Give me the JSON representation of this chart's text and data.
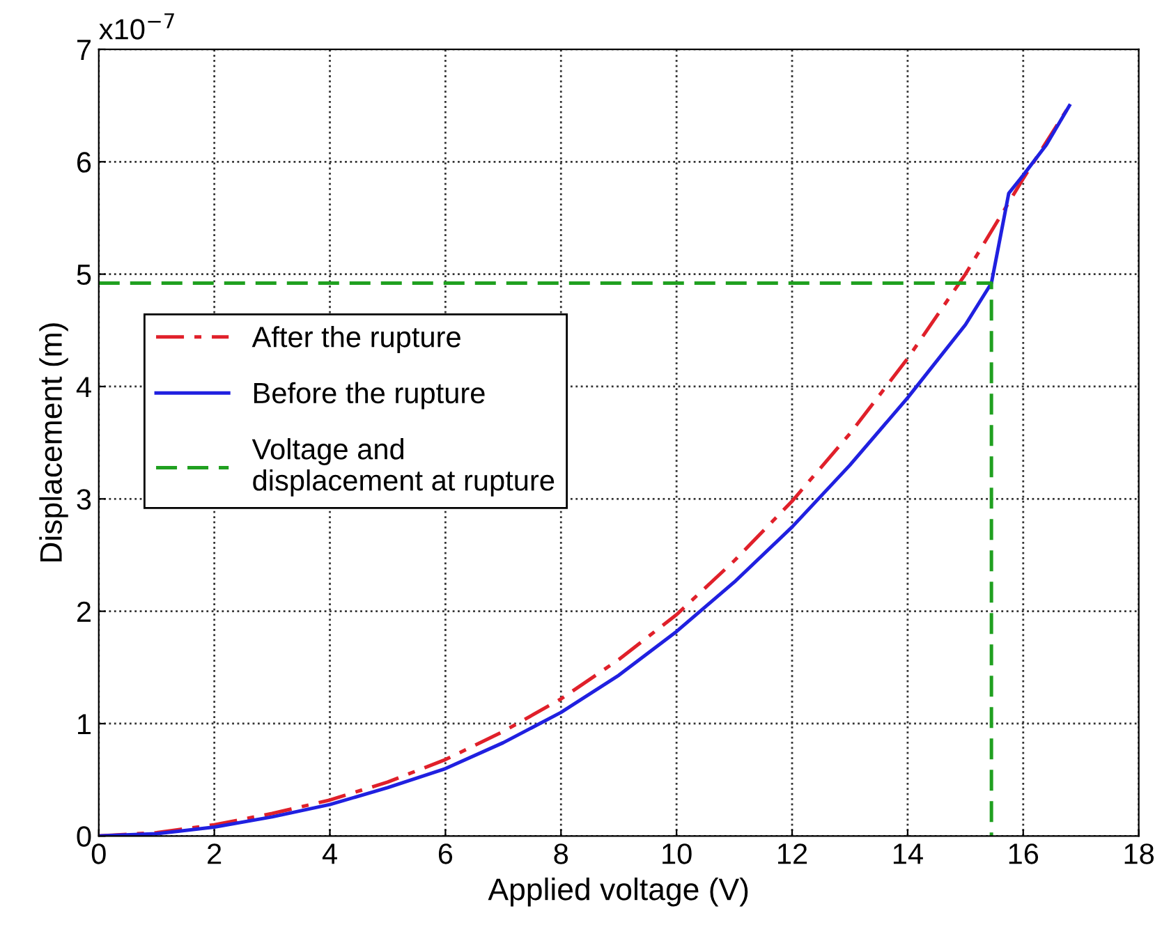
{
  "chart_data": {
    "type": "line",
    "xlabel": "Applied voltage (V)",
    "ylabel": "Displacement (m)",
    "annotations": [
      "x10$^{−7}$"
    ],
    "xlim": [
      0,
      18
    ],
    "xticks": [
      0,
      2,
      4,
      6,
      8,
      10,
      12,
      14,
      16,
      18
    ],
    "ylim": [
      0,
      7
    ],
    "yticks": [
      0,
      1,
      2,
      3,
      4,
      5,
      6,
      7
    ],
    "grid": true,
    "legend": "left",
    "marker": "none",
    "series": [
      {
        "name": "After the rupture",
        "color": "#e0202a",
        "line_style": "dashdot",
        "x": [
          0,
          1,
          2,
          3,
          4,
          5,
          6,
          7,
          8,
          9,
          10,
          11,
          12,
          13,
          14,
          15,
          16,
          16.8
        ],
        "values": [
          0,
          0.03,
          0.1,
          0.2,
          0.32,
          0.48,
          0.68,
          0.93,
          1.22,
          1.57,
          1.97,
          2.45,
          2.98,
          3.58,
          4.25,
          5.0,
          5.85,
          6.5
        ]
      },
      {
        "name": "Before the rupture",
        "color": "#2020e0",
        "line_style": "solid",
        "x": [
          0,
          1,
          2,
          3,
          4,
          5,
          6,
          7,
          8,
          9,
          10,
          11,
          12,
          13,
          14,
          15,
          15.45,
          15.75,
          16,
          16.4,
          16.8
        ],
        "values": [
          0,
          0.02,
          0.08,
          0.17,
          0.28,
          0.43,
          0.6,
          0.83,
          1.1,
          1.43,
          1.82,
          2.26,
          2.75,
          3.3,
          3.9,
          4.55,
          4.92,
          5.72,
          5.88,
          6.15,
          6.5
        ]
      },
      {
        "name": "Voltage and\ndisplacement at rupture",
        "color": "#20a020",
        "line_style": "dashed",
        "x": [
          0,
          15.45,
          15.45
        ],
        "values": [
          4.92,
          4.92,
          0
        ]
      }
    ]
  }
}
